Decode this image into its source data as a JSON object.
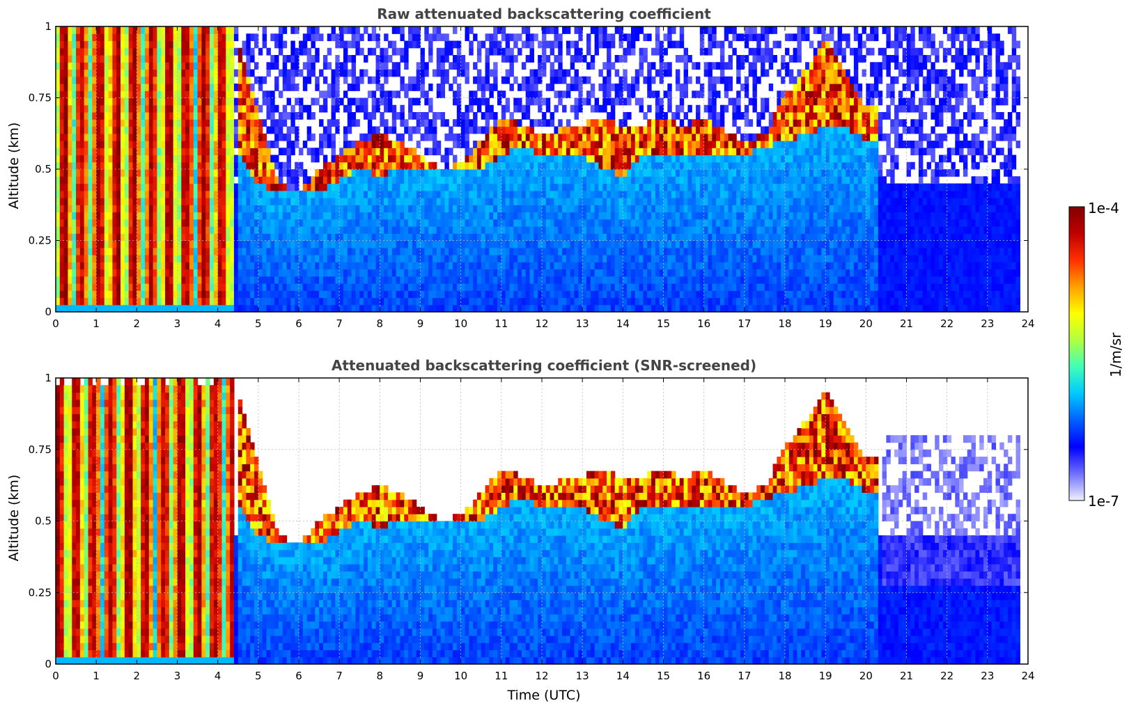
{
  "chart_data": [
    {
      "type": "heatmap",
      "title": "Raw attenuated backscattering coefficient",
      "xlabel": "",
      "ylabel": "Altitude (km)",
      "xlim": [
        0,
        24
      ],
      "ylim": [
        0,
        1
      ],
      "x_ticks": [
        "0",
        "1",
        "2",
        "3",
        "4",
        "5",
        "6",
        "7",
        "8",
        "9",
        "10",
        "11",
        "12",
        "13",
        "14",
        "15",
        "16",
        "17",
        "18",
        "19",
        "20",
        "21",
        "22",
        "23",
        "24"
      ],
      "y_ticks": [
        "0",
        "0.25",
        "0.5",
        "0.75",
        "1"
      ],
      "grid": "dotted",
      "data_extent_x": [
        0,
        23.8
      ],
      "high_signal_columns_until": 4.4,
      "cloud_top_km": [
        [
          4.5,
          0.95
        ],
        [
          5,
          0.7
        ],
        [
          5.5,
          0.45
        ],
        [
          6,
          0.42
        ],
        [
          6.5,
          0.5
        ],
        [
          7,
          0.55
        ],
        [
          7.5,
          0.6
        ],
        [
          8,
          0.62
        ],
        [
          8.5,
          0.6
        ],
        [
          9,
          0.55
        ],
        [
          9.5,
          0.5
        ],
        [
          10,
          0.52
        ],
        [
          10.5,
          0.6
        ],
        [
          11,
          0.68
        ],
        [
          11.5,
          0.66
        ],
        [
          12,
          0.62
        ],
        [
          12.5,
          0.64
        ],
        [
          13,
          0.66
        ],
        [
          13.5,
          0.68
        ],
        [
          14,
          0.65
        ],
        [
          14.5,
          0.66
        ],
        [
          15,
          0.68
        ],
        [
          15.5,
          0.65
        ],
        [
          16,
          0.68
        ],
        [
          16.5,
          0.64
        ],
        [
          17,
          0.6
        ],
        [
          17.5,
          0.62
        ],
        [
          18,
          0.76
        ],
        [
          18.5,
          0.85
        ],
        [
          19,
          0.95
        ],
        [
          19.5,
          0.85
        ],
        [
          20,
          0.72
        ]
      ],
      "cloud_base_km": [
        [
          4.5,
          0.55
        ],
        [
          5,
          0.45
        ],
        [
          5.5,
          0.42
        ],
        [
          6,
          0.42
        ],
        [
          6.5,
          0.42
        ],
        [
          7,
          0.46
        ],
        [
          7.5,
          0.5
        ],
        [
          8,
          0.48
        ],
        [
          8.5,
          0.5
        ],
        [
          9,
          0.5
        ],
        [
          9.5,
          0.5
        ],
        [
          10,
          0.5
        ],
        [
          10.5,
          0.5
        ],
        [
          11,
          0.55
        ],
        [
          11.5,
          0.58
        ],
        [
          12,
          0.55
        ],
        [
          12.5,
          0.55
        ],
        [
          13,
          0.55
        ],
        [
          13.5,
          0.5
        ],
        [
          14,
          0.48
        ],
        [
          14.5,
          0.55
        ],
        [
          15,
          0.56
        ],
        [
          15.5,
          0.55
        ],
        [
          16,
          0.55
        ],
        [
          16.5,
          0.55
        ],
        [
          17,
          0.55
        ],
        [
          17.5,
          0.58
        ],
        [
          18,
          0.6
        ],
        [
          18.5,
          0.62
        ],
        [
          19,
          0.65
        ],
        [
          19.5,
          0.65
        ],
        [
          20,
          0.6
        ]
      ]
    },
    {
      "type": "heatmap",
      "title": "Attenuated backscattering coefficient (SNR-screened)",
      "xlabel": "Time (UTC)",
      "ylabel": "Altitude (km)",
      "xlim": [
        0,
        24
      ],
      "ylim": [
        0,
        1
      ],
      "x_ticks": [
        "0",
        "1",
        "2",
        "3",
        "4",
        "5",
        "6",
        "7",
        "8",
        "9",
        "10",
        "11",
        "12",
        "13",
        "14",
        "15",
        "16",
        "17",
        "18",
        "19",
        "20",
        "21",
        "22",
        "23",
        "24"
      ],
      "y_ticks": [
        "0",
        "0.25",
        "0.5",
        "0.75",
        "1"
      ],
      "grid": "dotted",
      "data_extent_x": [
        0,
        23.8
      ],
      "high_signal_columns_until": 4.4,
      "cloud_top_km": [
        [
          4.5,
          0.95
        ],
        [
          5,
          0.7
        ],
        [
          5.5,
          0.45
        ],
        [
          6,
          0.42
        ],
        [
          6.5,
          0.5
        ],
        [
          7,
          0.55
        ],
        [
          7.5,
          0.6
        ],
        [
          8,
          0.62
        ],
        [
          8.5,
          0.6
        ],
        [
          9,
          0.55
        ],
        [
          9.5,
          0.5
        ],
        [
          10,
          0.52
        ],
        [
          10.5,
          0.6
        ],
        [
          11,
          0.68
        ],
        [
          11.5,
          0.66
        ],
        [
          12,
          0.62
        ],
        [
          12.5,
          0.64
        ],
        [
          13,
          0.66
        ],
        [
          13.5,
          0.68
        ],
        [
          14,
          0.65
        ],
        [
          14.5,
          0.66
        ],
        [
          15,
          0.68
        ],
        [
          15.5,
          0.65
        ],
        [
          16,
          0.68
        ],
        [
          16.5,
          0.64
        ],
        [
          17,
          0.6
        ],
        [
          17.5,
          0.62
        ],
        [
          18,
          0.76
        ],
        [
          18.5,
          0.85
        ],
        [
          19,
          0.95
        ],
        [
          19.5,
          0.85
        ],
        [
          20,
          0.72
        ]
      ],
      "cloud_base_km": [
        [
          4.5,
          0.55
        ],
        [
          5,
          0.45
        ],
        [
          5.5,
          0.42
        ],
        [
          6,
          0.42
        ],
        [
          6.5,
          0.42
        ],
        [
          7,
          0.46
        ],
        [
          7.5,
          0.5
        ],
        [
          8,
          0.48
        ],
        [
          8.5,
          0.5
        ],
        [
          9,
          0.5
        ],
        [
          9.5,
          0.5
        ],
        [
          10,
          0.5
        ],
        [
          10.5,
          0.5
        ],
        [
          11,
          0.55
        ],
        [
          11.5,
          0.58
        ],
        [
          12,
          0.55
        ],
        [
          12.5,
          0.55
        ],
        [
          13,
          0.55
        ],
        [
          13.5,
          0.5
        ],
        [
          14,
          0.48
        ],
        [
          14.5,
          0.55
        ],
        [
          15,
          0.56
        ],
        [
          15.5,
          0.55
        ],
        [
          16,
          0.55
        ],
        [
          16.5,
          0.55
        ],
        [
          17,
          0.55
        ],
        [
          17.5,
          0.58
        ],
        [
          18,
          0.6
        ],
        [
          18.5,
          0.62
        ],
        [
          19,
          0.65
        ],
        [
          19.5,
          0.65
        ],
        [
          20,
          0.6
        ]
      ]
    }
  ],
  "colorbar": {
    "label": "1/m/sr",
    "max_label": "1e-4",
    "min_label": "1e-7",
    "colormap": [
      "#f0f0ff",
      "#7070ff",
      "#0000ff",
      "#0060ff",
      "#00c8ff",
      "#40ffb8",
      "#b0ff40",
      "#ffff00",
      "#ffa000",
      "#ff3000",
      "#c00000",
      "#800000"
    ]
  }
}
